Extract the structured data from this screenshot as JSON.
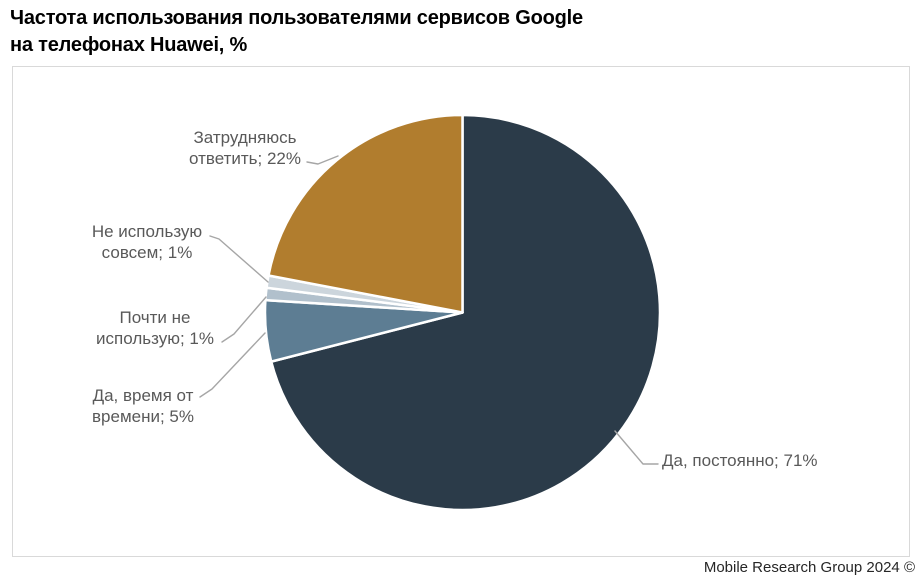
{
  "header": {
    "title_lines": [
      "Частота использования пользователями сервисов Google",
      "на телефонах Huawei, %"
    ]
  },
  "footer": {
    "credit": "Mobile Research Group 2024 ©"
  },
  "chart_data": {
    "type": "pie",
    "title": "Частота использования пользователями сервисов Google на телефонах Huawei, %",
    "unit": "%",
    "start_angle_deg": 0,
    "direction": "clockwise",
    "legend": "none",
    "center": [
      462.5,
      312.5
    ],
    "radius": 197.5,
    "slice_gap_color": "#ffffff",
    "label_color": "#595959",
    "leader_line_color": "#a6a6a6",
    "segments": [
      {
        "id": "da-postoyanno",
        "label": "Да, постоянно",
        "value": 71,
        "color": "#2b3b49",
        "label_lines": [
          "Да, постоянно; 71%"
        ]
      },
      {
        "id": "da-vremya-ot-vremeni",
        "label": "Да, время от времени",
        "value": 5,
        "color": "#5d7d93",
        "label_lines": [
          "Да, время от",
          "времени; 5%"
        ]
      },
      {
        "id": "pochti-ne-ispolzuyu",
        "label": "Почти не использую",
        "value": 1,
        "color": "#b1c0cc",
        "label_lines": [
          "Почти не",
          "использую; 1%"
        ]
      },
      {
        "id": "ne-ispolzuyu-sovsem",
        "label": "Не использую совсем",
        "value": 1,
        "color": "#ccd5dc",
        "label_lines": [
          "Не использую",
          "совсем; 1%"
        ]
      },
      {
        "id": "zatrudnyayus-otvetit",
        "label": "Затрудняюсь ответить",
        "value": 22,
        "color": "#b17d2e",
        "label_lines": [
          "Затрудняюсь",
          "ответить; 22%"
        ]
      }
    ]
  }
}
